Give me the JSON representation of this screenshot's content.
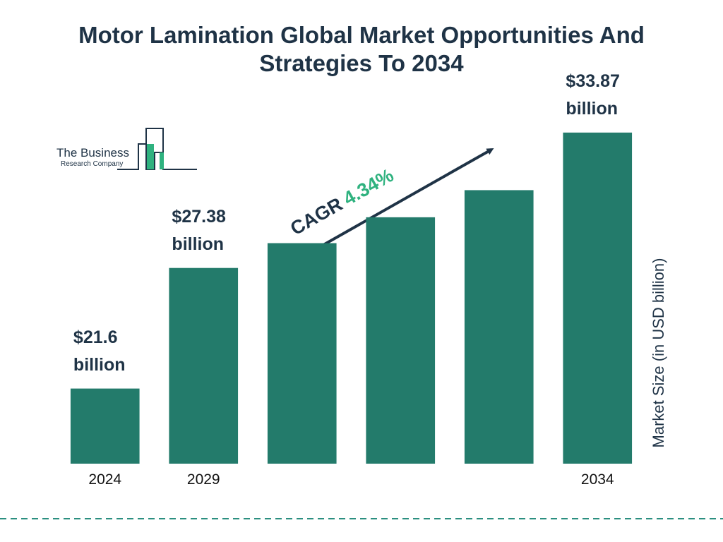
{
  "chart_data": {
    "type": "bar",
    "title": "Motor Lamination Global Market Opportunities And Strategies To 2034",
    "categories": [
      "2024",
      "2029",
      null,
      null,
      null,
      "2034"
    ],
    "values": [
      21.6,
      27.38,
      28.57,
      29.81,
      31.11,
      33.87
    ],
    "value_labels": [
      "$21.6 billion",
      "$27.38 billion",
      null,
      null,
      null,
      "$33.87 billion"
    ],
    "color": "#237b6b",
    "ylim": [
      18,
      34
    ],
    "y_axis_label": "Market Size (in USD billion)",
    "cagr_label": "CAGR",
    "cagr_value": "4.34%"
  },
  "logo": {
    "line1": "The Business",
    "line2": "Research Company"
  }
}
